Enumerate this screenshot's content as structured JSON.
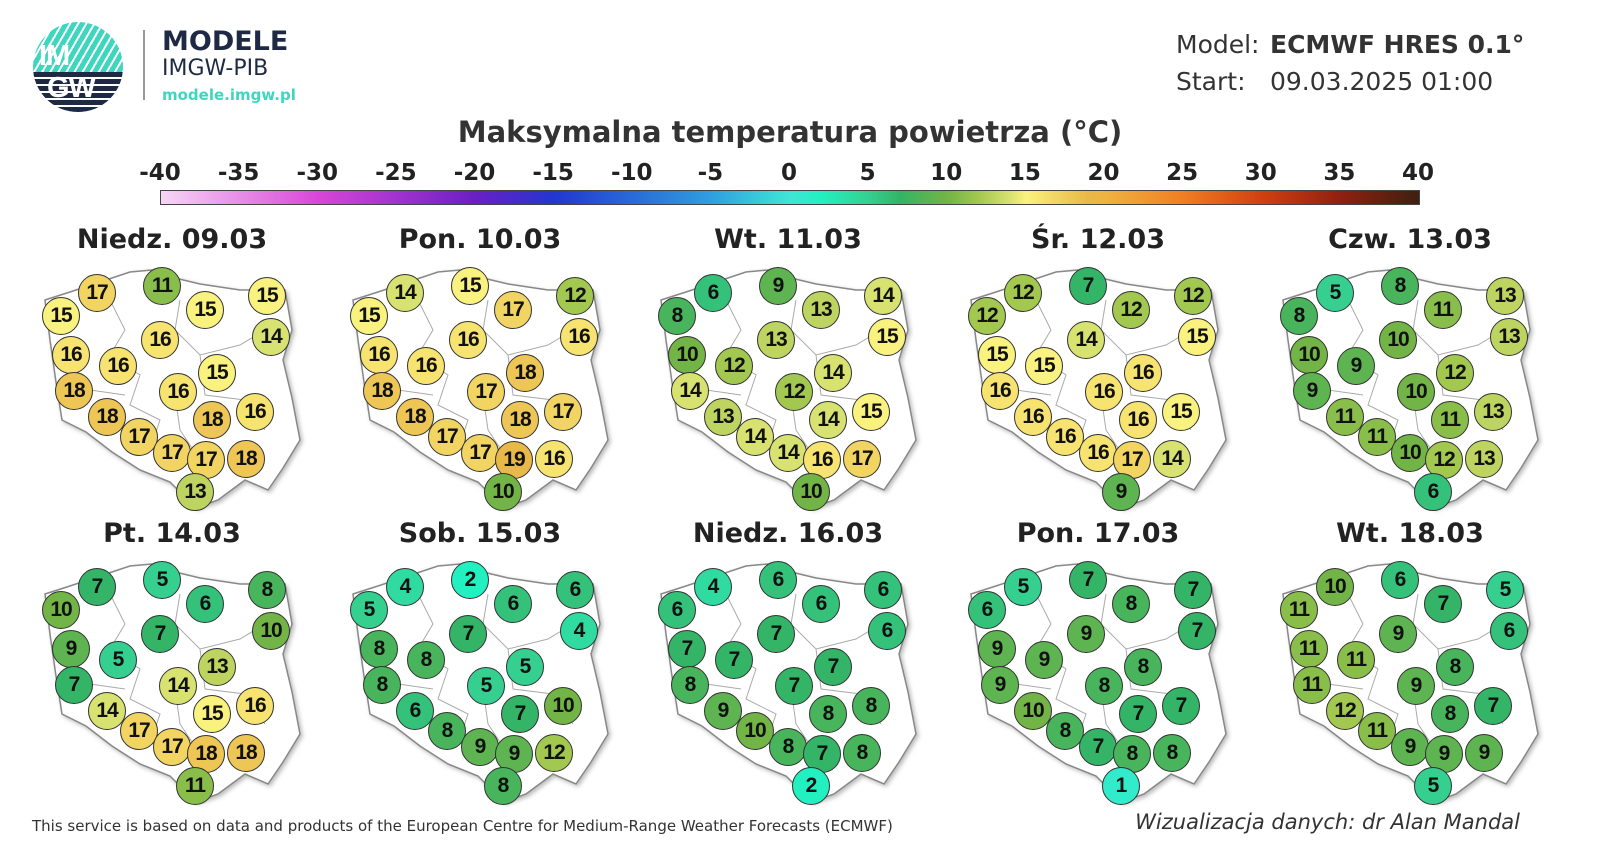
{
  "header": {
    "logo_text_top": "IM",
    "logo_text_bottom": "GW",
    "brand_title": "MODELE",
    "brand_subtitle": "IMGW-PIB",
    "brand_url": "modele.imgw.pl",
    "model_label": "Model:",
    "model_value": "ECMWF HRES 0.1°",
    "start_label": "Start:",
    "start_value": "09.03.2025 01:00"
  },
  "title": "Maksymalna temperatura powietrza (°C)",
  "colorbar": {
    "ticks": [
      "-40",
      "-35",
      "-30",
      "-25",
      "-20",
      "-15",
      "-10",
      "-5",
      "0",
      "5",
      "10",
      "15",
      "20",
      "25",
      "30",
      "35",
      "40"
    ],
    "range": [
      -40,
      40
    ],
    "stops": [
      {
        "t": -40,
        "c": "#f6d6f6"
      },
      {
        "t": -30,
        "c": "#d846d8"
      },
      {
        "t": -20,
        "c": "#6a1fc4"
      },
      {
        "t": -15,
        "c": "#2236d0"
      },
      {
        "t": -5,
        "c": "#2f9fe0"
      },
      {
        "t": 0,
        "c": "#3fe6d6"
      },
      {
        "t": 2,
        "c": "#22f0c0"
      },
      {
        "t": 5,
        "c": "#35d090"
      },
      {
        "t": 7,
        "c": "#33b466"
      },
      {
        "t": 10,
        "c": "#72b445"
      },
      {
        "t": 12,
        "c": "#a2c850"
      },
      {
        "t": 14,
        "c": "#d8e270"
      },
      {
        "t": 15,
        "c": "#faf27e"
      },
      {
        "t": 17,
        "c": "#f2d462"
      },
      {
        "t": 19,
        "c": "#e8b848"
      },
      {
        "t": 20,
        "c": "#efb440"
      },
      {
        "t": 25,
        "c": "#f07e22"
      },
      {
        "t": 30,
        "c": "#d04010"
      },
      {
        "t": 35,
        "c": "#902010"
      },
      {
        "t": 40,
        "c": "#3e2010"
      }
    ]
  },
  "days": [
    {
      "label": "Niedz. 09.03",
      "values": [
        17,
        11,
        15,
        15,
        15,
        14,
        16,
        16,
        16,
        15,
        18,
        16,
        18,
        18,
        16,
        17,
        17,
        17,
        18,
        13
      ]
    },
    {
      "label": "Pon. 10.03",
      "values": [
        14,
        15,
        15,
        17,
        12,
        16,
        16,
        16,
        16,
        18,
        18,
        17,
        18,
        18,
        17,
        17,
        17,
        19,
        16,
        10
      ]
    },
    {
      "label": "Wt. 11.03",
      "values": [
        6,
        9,
        8,
        13,
        14,
        15,
        10,
        12,
        13,
        14,
        14,
        12,
        13,
        14,
        15,
        14,
        14,
        16,
        17,
        10
      ]
    },
    {
      "label": "Śr. 12.03",
      "values": [
        12,
        7,
        12,
        12,
        12,
        15,
        15,
        15,
        14,
        16,
        16,
        16,
        16,
        16,
        15,
        16,
        16,
        17,
        14,
        9
      ]
    },
    {
      "label": "Czw. 13.03",
      "values": [
        5,
        8,
        8,
        11,
        13,
        13,
        10,
        9,
        10,
        12,
        9,
        10,
        11,
        11,
        13,
        11,
        10,
        12,
        13,
        6
      ]
    },
    {
      "label": "Pt. 14.03",
      "values": [
        7,
        5,
        10,
        6,
        8,
        10,
        9,
        5,
        7,
        13,
        7,
        14,
        14,
        15,
        16,
        17,
        17,
        18,
        18,
        11
      ]
    },
    {
      "label": "Sob. 15.03",
      "values": [
        4,
        2,
        5,
        6,
        6,
        4,
        8,
        8,
        7,
        5,
        8,
        5,
        6,
        7,
        10,
        8,
        9,
        9,
        12,
        8
      ]
    },
    {
      "label": "Niedz. 16.03",
      "values": [
        4,
        6,
        6,
        6,
        6,
        6,
        7,
        7,
        7,
        7,
        8,
        7,
        9,
        8,
        8,
        10,
        8,
        7,
        8,
        2
      ]
    },
    {
      "label": "Pon. 17.03",
      "values": [
        5,
        7,
        6,
        8,
        7,
        7,
        9,
        9,
        9,
        8,
        9,
        8,
        10,
        7,
        7,
        8,
        7,
        8,
        8,
        1
      ]
    },
    {
      "label": "Wt. 18.03",
      "values": [
        10,
        6,
        11,
        7,
        5,
        6,
        11,
        11,
        9,
        8,
        11,
        9,
        12,
        8,
        7,
        11,
        9,
        9,
        9,
        5
      ]
    }
  ],
  "footer": {
    "attribution": "This service is based on data and products of the European Centre for Medium-Range Weather Forecasts (ECMWF)",
    "credit": "Wizualizacja danych: dr Alan Mandal"
  }
}
